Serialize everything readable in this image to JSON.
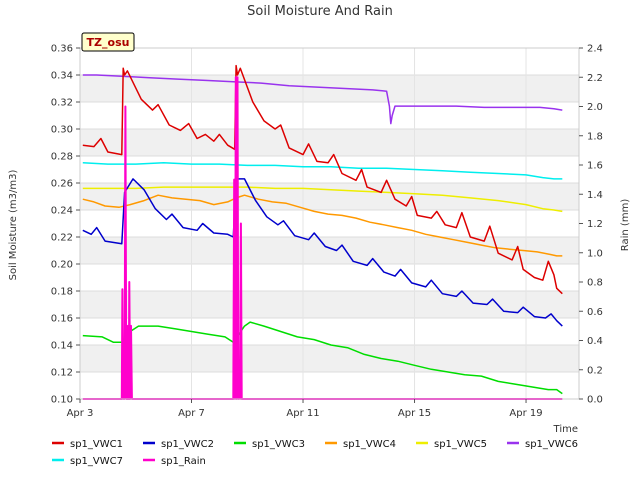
{
  "chart_data": {
    "type": "line",
    "title": "Soil Moisture And Rain",
    "badge": "TZ_osu",
    "xlabel": "Time",
    "ylabel": "Soil Moisture (m3/m3)",
    "y2label": "Rain (mm)",
    "xlim": [
      0,
      17.9
    ],
    "ylim": [
      0.1,
      0.36
    ],
    "y2lim": [
      0.0,
      2.4
    ],
    "x_ticks": [
      {
        "x": 0,
        "label": "Apr 3"
      },
      {
        "x": 4,
        "label": "Apr 7"
      },
      {
        "x": 8,
        "label": "Apr 11"
      },
      {
        "x": 12,
        "label": "Apr 15"
      },
      {
        "x": 16,
        "label": "Apr 19"
      }
    ],
    "y_ticks": [
      "0.10",
      "0.12",
      "0.14",
      "0.16",
      "0.18",
      "0.20",
      "0.22",
      "0.24",
      "0.26",
      "0.28",
      "0.30",
      "0.32",
      "0.34",
      "0.36"
    ],
    "y2_ticks": [
      "0.0",
      "0.2",
      "0.4",
      "0.6",
      "0.8",
      "1.0",
      "1.2",
      "1.4",
      "1.6",
      "1.8",
      "2.0",
      "2.2",
      "2.4"
    ],
    "grid": true,
    "legend_position": "bottom",
    "series": [
      {
        "name": "sp1_VWC1",
        "color": "#dd0000",
        "axis": "left",
        "points": [
          [
            0.1,
            0.288
          ],
          [
            0.5,
            0.287
          ],
          [
            0.75,
            0.293
          ],
          [
            1.0,
            0.283
          ],
          [
            1.5,
            0.281
          ],
          [
            1.55,
            0.345
          ],
          [
            1.6,
            0.34
          ],
          [
            1.7,
            0.343
          ],
          [
            2.2,
            0.322
          ],
          [
            2.6,
            0.314
          ],
          [
            2.8,
            0.318
          ],
          [
            3.2,
            0.303
          ],
          [
            3.6,
            0.299
          ],
          [
            3.9,
            0.304
          ],
          [
            4.2,
            0.293
          ],
          [
            4.5,
            0.296
          ],
          [
            4.8,
            0.291
          ],
          [
            5.0,
            0.296
          ],
          [
            5.3,
            0.288
          ],
          [
            5.55,
            0.285
          ],
          [
            5.6,
            0.347
          ],
          [
            5.65,
            0.34
          ],
          [
            5.75,
            0.345
          ],
          [
            6.2,
            0.32
          ],
          [
            6.6,
            0.306
          ],
          [
            7.0,
            0.3
          ],
          [
            7.2,
            0.303
          ],
          [
            7.5,
            0.286
          ],
          [
            8.0,
            0.281
          ],
          [
            8.2,
            0.289
          ],
          [
            8.5,
            0.276
          ],
          [
            8.9,
            0.275
          ],
          [
            9.1,
            0.281
          ],
          [
            9.4,
            0.267
          ],
          [
            9.9,
            0.262
          ],
          [
            10.1,
            0.27
          ],
          [
            10.3,
            0.257
          ],
          [
            10.8,
            0.253
          ],
          [
            11.0,
            0.262
          ],
          [
            11.3,
            0.248
          ],
          [
            11.7,
            0.243
          ],
          [
            11.9,
            0.25
          ],
          [
            12.1,
            0.236
          ],
          [
            12.6,
            0.234
          ],
          [
            12.8,
            0.239
          ],
          [
            13.1,
            0.229
          ],
          [
            13.5,
            0.227
          ],
          [
            13.7,
            0.238
          ],
          [
            14.0,
            0.22
          ],
          [
            14.5,
            0.217
          ],
          [
            14.7,
            0.228
          ],
          [
            15.0,
            0.208
          ],
          [
            15.5,
            0.203
          ],
          [
            15.7,
            0.213
          ],
          [
            15.9,
            0.196
          ],
          [
            16.3,
            0.19
          ],
          [
            16.6,
            0.188
          ],
          [
            16.8,
            0.202
          ],
          [
            17.0,
            0.192
          ],
          [
            17.1,
            0.182
          ],
          [
            17.3,
            0.178
          ]
        ]
      },
      {
        "name": "sp1_VWC2",
        "color": "#0000cc",
        "axis": "left",
        "points": [
          [
            0.1,
            0.225
          ],
          [
            0.4,
            0.222
          ],
          [
            0.6,
            0.227
          ],
          [
            0.9,
            0.217
          ],
          [
            1.5,
            0.215
          ],
          [
            1.6,
            0.253
          ],
          [
            1.9,
            0.263
          ],
          [
            2.3,
            0.255
          ],
          [
            2.7,
            0.241
          ],
          [
            3.1,
            0.233
          ],
          [
            3.3,
            0.237
          ],
          [
            3.7,
            0.227
          ],
          [
            4.2,
            0.225
          ],
          [
            4.4,
            0.23
          ],
          [
            4.8,
            0.223
          ],
          [
            5.3,
            0.222
          ],
          [
            5.5,
            0.22
          ],
          [
            5.6,
            0.263
          ],
          [
            5.9,
            0.263
          ],
          [
            6.3,
            0.247
          ],
          [
            6.7,
            0.235
          ],
          [
            7.1,
            0.229
          ],
          [
            7.3,
            0.232
          ],
          [
            7.7,
            0.221
          ],
          [
            8.2,
            0.218
          ],
          [
            8.4,
            0.223
          ],
          [
            8.8,
            0.213
          ],
          [
            9.2,
            0.21
          ],
          [
            9.4,
            0.214
          ],
          [
            9.8,
            0.202
          ],
          [
            10.3,
            0.199
          ],
          [
            10.5,
            0.204
          ],
          [
            10.9,
            0.194
          ],
          [
            11.3,
            0.191
          ],
          [
            11.5,
            0.196
          ],
          [
            11.9,
            0.186
          ],
          [
            12.4,
            0.183
          ],
          [
            12.6,
            0.188
          ],
          [
            13.0,
            0.178
          ],
          [
            13.5,
            0.176
          ],
          [
            13.7,
            0.18
          ],
          [
            14.1,
            0.171
          ],
          [
            14.6,
            0.17
          ],
          [
            14.8,
            0.174
          ],
          [
            15.2,
            0.165
          ],
          [
            15.7,
            0.164
          ],
          [
            15.9,
            0.168
          ],
          [
            16.3,
            0.161
          ],
          [
            16.7,
            0.16
          ],
          [
            16.9,
            0.163
          ],
          [
            17.1,
            0.158
          ],
          [
            17.3,
            0.154
          ]
        ]
      },
      {
        "name": "sp1_VWC3",
        "color": "#00dd00",
        "axis": "left",
        "points": [
          [
            0.1,
            0.147
          ],
          [
            0.8,
            0.146
          ],
          [
            1.2,
            0.142
          ],
          [
            1.5,
            0.142
          ],
          [
            1.8,
            0.15
          ],
          [
            2.1,
            0.154
          ],
          [
            2.8,
            0.154
          ],
          [
            3.4,
            0.152
          ],
          [
            4.0,
            0.15
          ],
          [
            4.6,
            0.148
          ],
          [
            5.2,
            0.146
          ],
          [
            5.5,
            0.142
          ],
          [
            5.6,
            0.145
          ],
          [
            5.9,
            0.154
          ],
          [
            6.1,
            0.157
          ],
          [
            6.6,
            0.154
          ],
          [
            7.2,
            0.15
          ],
          [
            7.8,
            0.146
          ],
          [
            8.4,
            0.144
          ],
          [
            9.0,
            0.14
          ],
          [
            9.6,
            0.138
          ],
          [
            10.2,
            0.133
          ],
          [
            10.8,
            0.13
          ],
          [
            11.4,
            0.128
          ],
          [
            12.0,
            0.125
          ],
          [
            12.6,
            0.122
          ],
          [
            13.2,
            0.12
          ],
          [
            13.8,
            0.118
          ],
          [
            14.4,
            0.117
          ],
          [
            15.0,
            0.113
          ],
          [
            15.6,
            0.111
          ],
          [
            16.2,
            0.109
          ],
          [
            16.8,
            0.107
          ],
          [
            17.1,
            0.107
          ],
          [
            17.3,
            0.104
          ]
        ]
      },
      {
        "name": "sp1_VWC4",
        "color": "#ff9900",
        "axis": "left",
        "points": [
          [
            0.1,
            0.248
          ],
          [
            0.5,
            0.246
          ],
          [
            0.9,
            0.243
          ],
          [
            1.4,
            0.242
          ],
          [
            1.8,
            0.244
          ],
          [
            2.3,
            0.247
          ],
          [
            2.8,
            0.251
          ],
          [
            3.3,
            0.249
          ],
          [
            3.8,
            0.248
          ],
          [
            4.3,
            0.247
          ],
          [
            4.8,
            0.244
          ],
          [
            5.3,
            0.246
          ],
          [
            5.6,
            0.249
          ],
          [
            5.9,
            0.251
          ],
          [
            6.4,
            0.248
          ],
          [
            6.9,
            0.246
          ],
          [
            7.4,
            0.245
          ],
          [
            7.9,
            0.242
          ],
          [
            8.4,
            0.239
          ],
          [
            8.9,
            0.237
          ],
          [
            9.4,
            0.236
          ],
          [
            9.9,
            0.234
          ],
          [
            10.4,
            0.231
          ],
          [
            10.9,
            0.229
          ],
          [
            11.4,
            0.227
          ],
          [
            11.9,
            0.225
          ],
          [
            12.4,
            0.222
          ],
          [
            12.9,
            0.22
          ],
          [
            13.4,
            0.218
          ],
          [
            13.9,
            0.216
          ],
          [
            14.4,
            0.214
          ],
          [
            14.9,
            0.212
          ],
          [
            15.4,
            0.211
          ],
          [
            15.9,
            0.21
          ],
          [
            16.4,
            0.209
          ],
          [
            16.9,
            0.207
          ],
          [
            17.1,
            0.206
          ],
          [
            17.3,
            0.206
          ]
        ]
      },
      {
        "name": "sp1_VWC5",
        "color": "#eeee00",
        "axis": "left",
        "points": [
          [
            0.1,
            0.256
          ],
          [
            1.0,
            0.256
          ],
          [
            2.0,
            0.256
          ],
          [
            3.0,
            0.257
          ],
          [
            4.0,
            0.257
          ],
          [
            5.0,
            0.257
          ],
          [
            6.0,
            0.257
          ],
          [
            7.0,
            0.256
          ],
          [
            8.0,
            0.256
          ],
          [
            9.0,
            0.255
          ],
          [
            10.0,
            0.254
          ],
          [
            11.0,
            0.253
          ],
          [
            12.0,
            0.252
          ],
          [
            13.0,
            0.251
          ],
          [
            14.0,
            0.249
          ],
          [
            15.0,
            0.247
          ],
          [
            16.0,
            0.244
          ],
          [
            16.6,
            0.241
          ],
          [
            17.0,
            0.24
          ],
          [
            17.3,
            0.239
          ]
        ]
      },
      {
        "name": "sp1_VWC6",
        "color": "#9933ee",
        "axis": "left",
        "points": [
          [
            0.1,
            0.34
          ],
          [
            0.6,
            0.34
          ],
          [
            1.5,
            0.339
          ],
          [
            2.5,
            0.338
          ],
          [
            3.5,
            0.337
          ],
          [
            4.5,
            0.336
          ],
          [
            5.5,
            0.335
          ],
          [
            6.5,
            0.334
          ],
          [
            7.5,
            0.332
          ],
          [
            8.5,
            0.331
          ],
          [
            9.5,
            0.33
          ],
          [
            10.5,
            0.329
          ],
          [
            11.0,
            0.328
          ],
          [
            11.1,
            0.317
          ],
          [
            11.15,
            0.304
          ],
          [
            11.2,
            0.31
          ],
          [
            11.3,
            0.317
          ],
          [
            11.5,
            0.317
          ],
          [
            12.5,
            0.317
          ],
          [
            13.5,
            0.317
          ],
          [
            14.5,
            0.316
          ],
          [
            15.5,
            0.316
          ],
          [
            16.5,
            0.316
          ],
          [
            17.0,
            0.315
          ],
          [
            17.3,
            0.314
          ]
        ]
      },
      {
        "name": "sp1_VWC7",
        "color": "#00eeee",
        "axis": "left",
        "points": [
          [
            0.1,
            0.275
          ],
          [
            1.0,
            0.274
          ],
          [
            2.0,
            0.274
          ],
          [
            3.0,
            0.275
          ],
          [
            4.0,
            0.274
          ],
          [
            5.0,
            0.274
          ],
          [
            6.0,
            0.273
          ],
          [
            7.0,
            0.273
          ],
          [
            8.0,
            0.272
          ],
          [
            9.0,
            0.272
          ],
          [
            10.0,
            0.271
          ],
          [
            11.0,
            0.271
          ],
          [
            12.0,
            0.27
          ],
          [
            13.0,
            0.269
          ],
          [
            14.0,
            0.268
          ],
          [
            15.0,
            0.267
          ],
          [
            16.0,
            0.266
          ],
          [
            16.6,
            0.264
          ],
          [
            17.0,
            0.263
          ],
          [
            17.3,
            0.263
          ]
        ]
      },
      {
        "name": "sp1_Rain",
        "color": "#ff00cc",
        "axis": "right",
        "points": [
          [
            0.1,
            0.0
          ],
          [
            1.5,
            0.0
          ],
          [
            1.52,
            0.75
          ],
          [
            1.55,
            0.0
          ],
          [
            1.58,
            0.25
          ],
          [
            1.6,
            0.0
          ],
          [
            1.63,
            2.0
          ],
          [
            1.66,
            0.0
          ],
          [
            1.7,
            0.0
          ],
          [
            1.72,
            0.5
          ],
          [
            1.75,
            0.0
          ],
          [
            1.77,
            0.8
          ],
          [
            1.8,
            0.0
          ],
          [
            1.83,
            0.5
          ],
          [
            1.86,
            0.0
          ],
          [
            5.5,
            0.0
          ],
          [
            5.53,
            1.5
          ],
          [
            5.56,
            0.0
          ],
          [
            5.59,
            2.2
          ],
          [
            5.62,
            0.0
          ],
          [
            5.65,
            2.2
          ],
          [
            5.68,
            0.0
          ],
          [
            5.71,
            0.25
          ],
          [
            5.74,
            0.0
          ],
          [
            5.77,
            1.2
          ],
          [
            5.8,
            0.0
          ],
          [
            17.3,
            0.0
          ]
        ]
      }
    ]
  }
}
